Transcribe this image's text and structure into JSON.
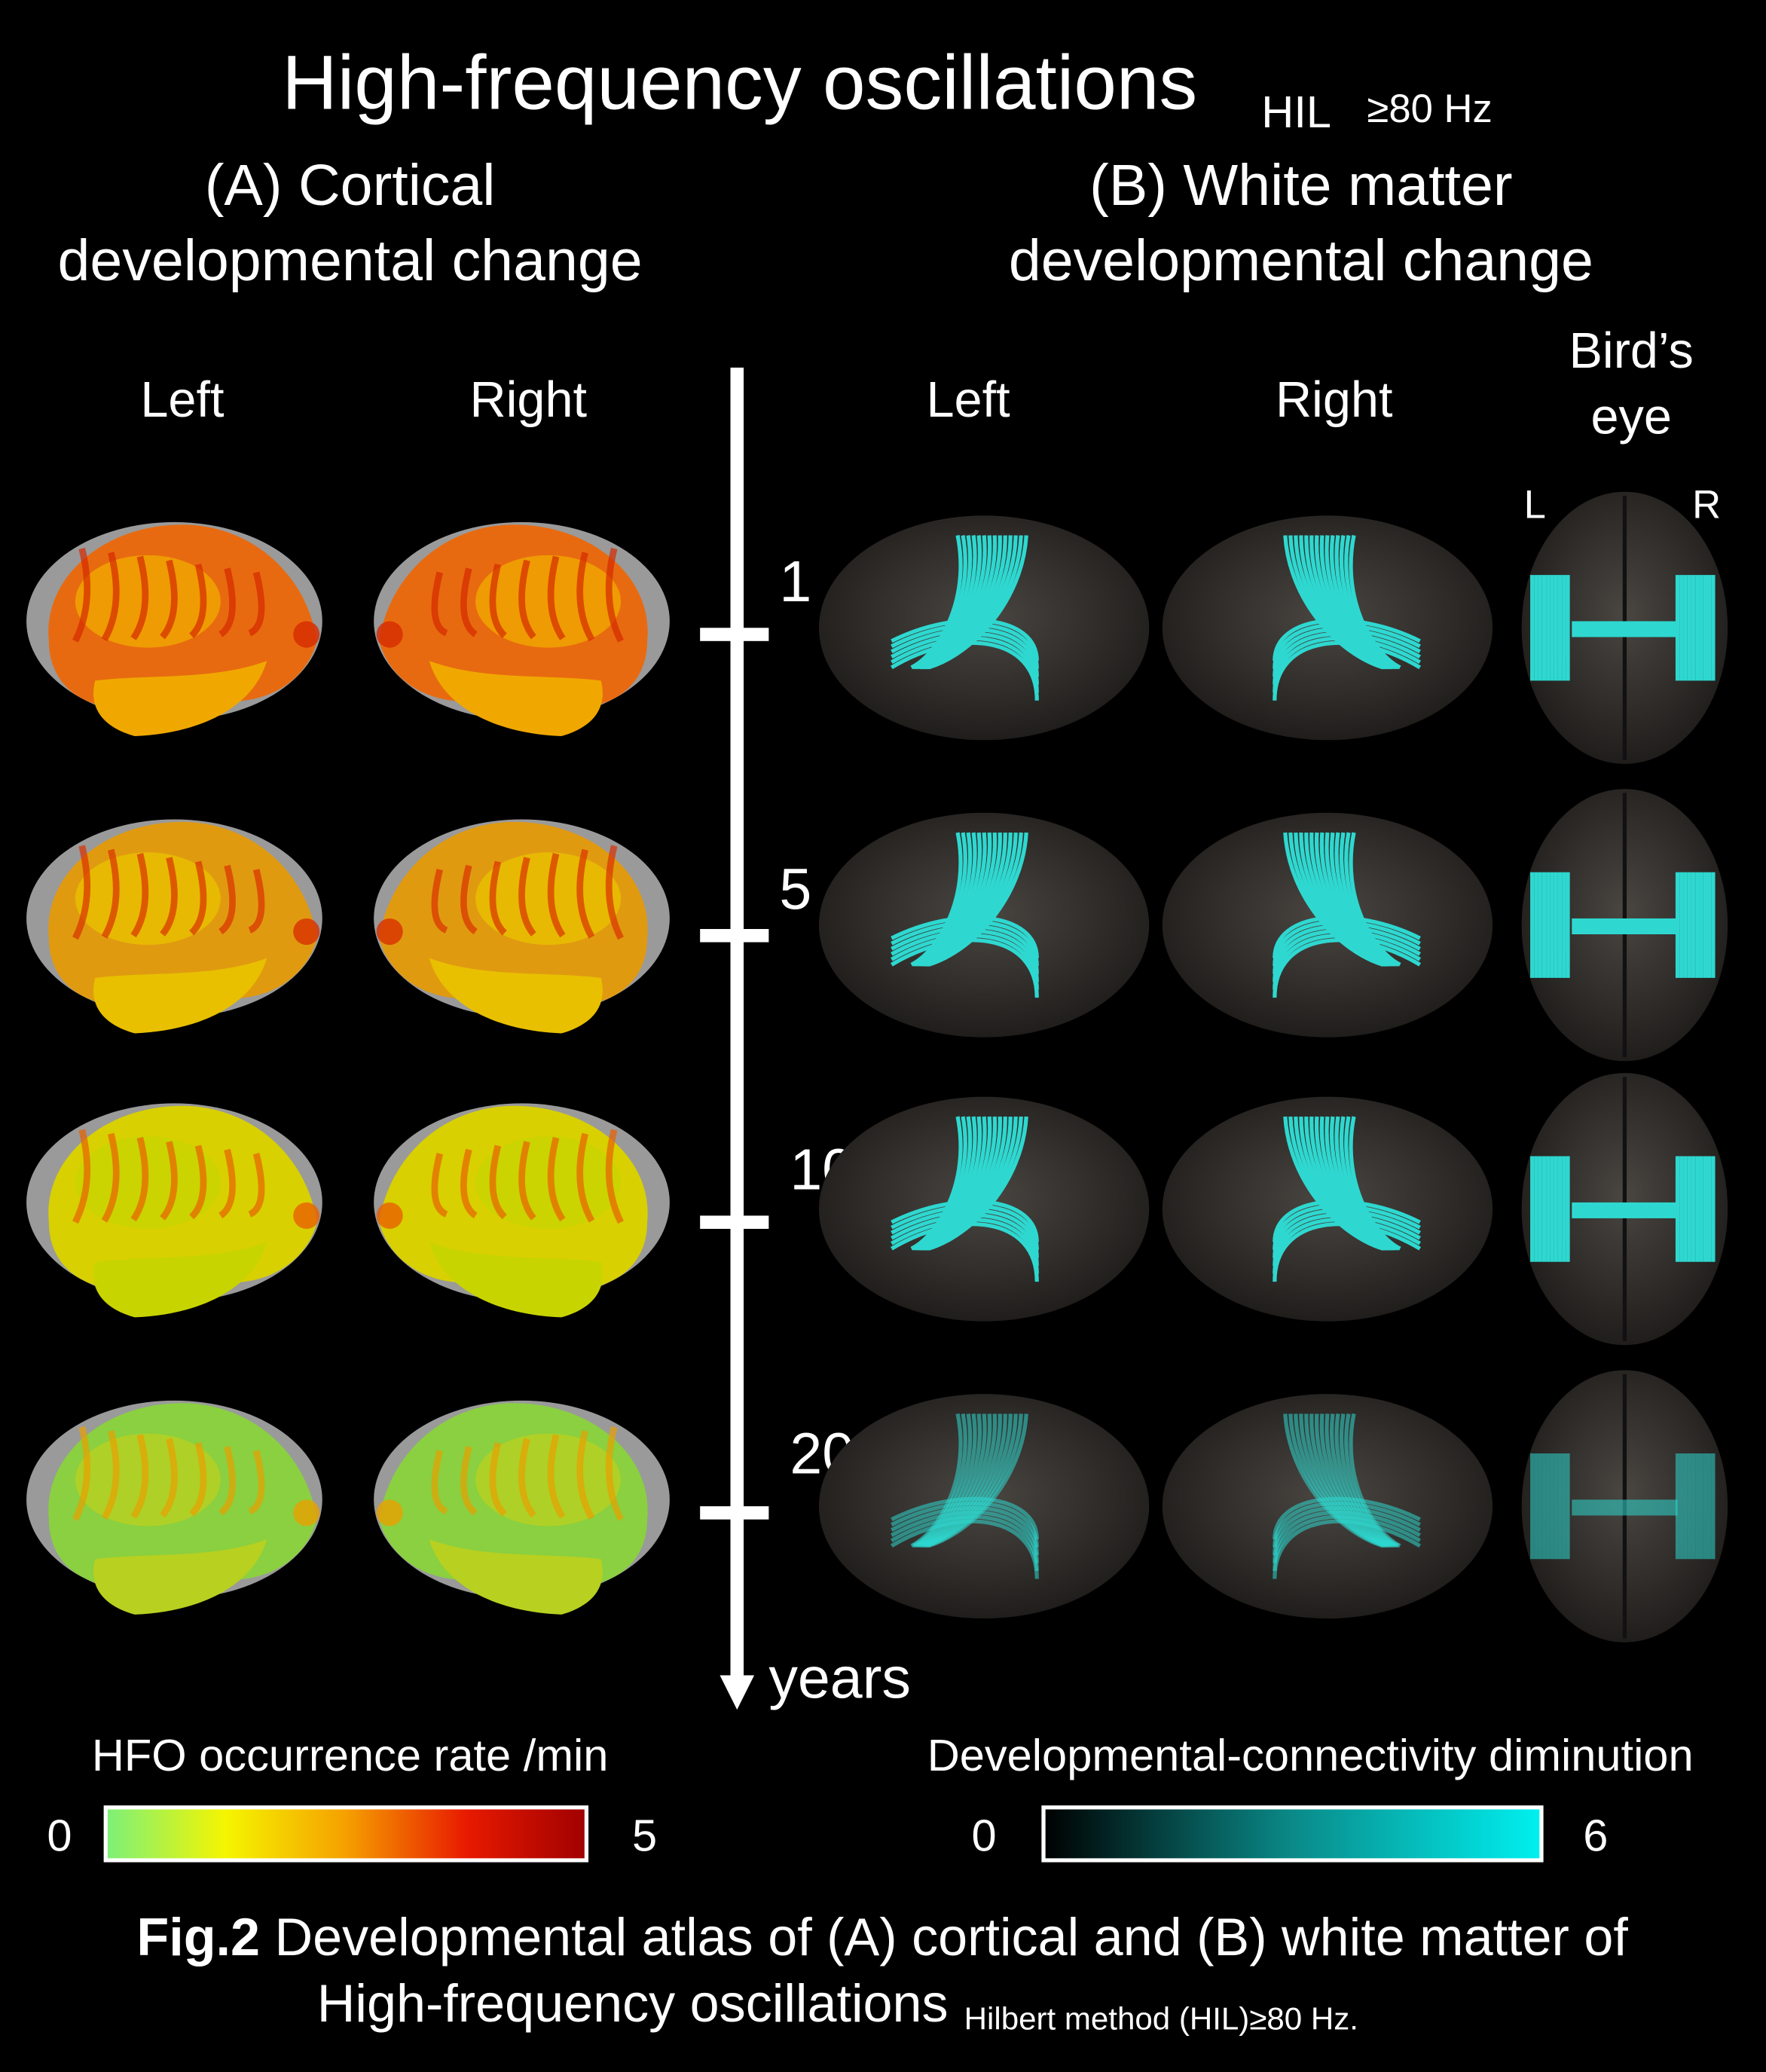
{
  "title": {
    "main": "High-frequency oscillations",
    "sub_method": "HIL",
    "sub_freq": "≥80 Hz"
  },
  "panel_a": {
    "line1": "(A) Cortical",
    "line2": "developmental change",
    "col_left": "Left",
    "col_right": "Right"
  },
  "panel_b": {
    "line1": "(B) White matter",
    "line2": "developmental change",
    "col_left": "Left",
    "col_right": "Right",
    "col_bird1": "Bird’s",
    "col_bird2": "eye",
    "bird_l": "L",
    "bird_r": "R"
  },
  "timeline": {
    "ages": [
      "1",
      "5",
      "10",
      "20"
    ],
    "unit": "years"
  },
  "colorbar_a": {
    "label": "HFO occurrence rate /min",
    "min": "0",
    "max": "5",
    "colors": [
      "#7cf07a",
      "#f5f500",
      "#f5a000",
      "#e81a00",
      "#a00000"
    ]
  },
  "colorbar_b": {
    "label": "Developmental-connectivity diminution",
    "min": "0",
    "max": "6",
    "colors": [
      "#000000",
      "#0a8a88",
      "#00f0f0"
    ]
  },
  "caption": {
    "bold": "Fig.2",
    "line1": " Developmental atlas of (A) cortical and (B) white matter of",
    "line2": "High-frequency oscillations",
    "line2_sub": "Hilbert method (HIL)≥80 Hz."
  }
}
